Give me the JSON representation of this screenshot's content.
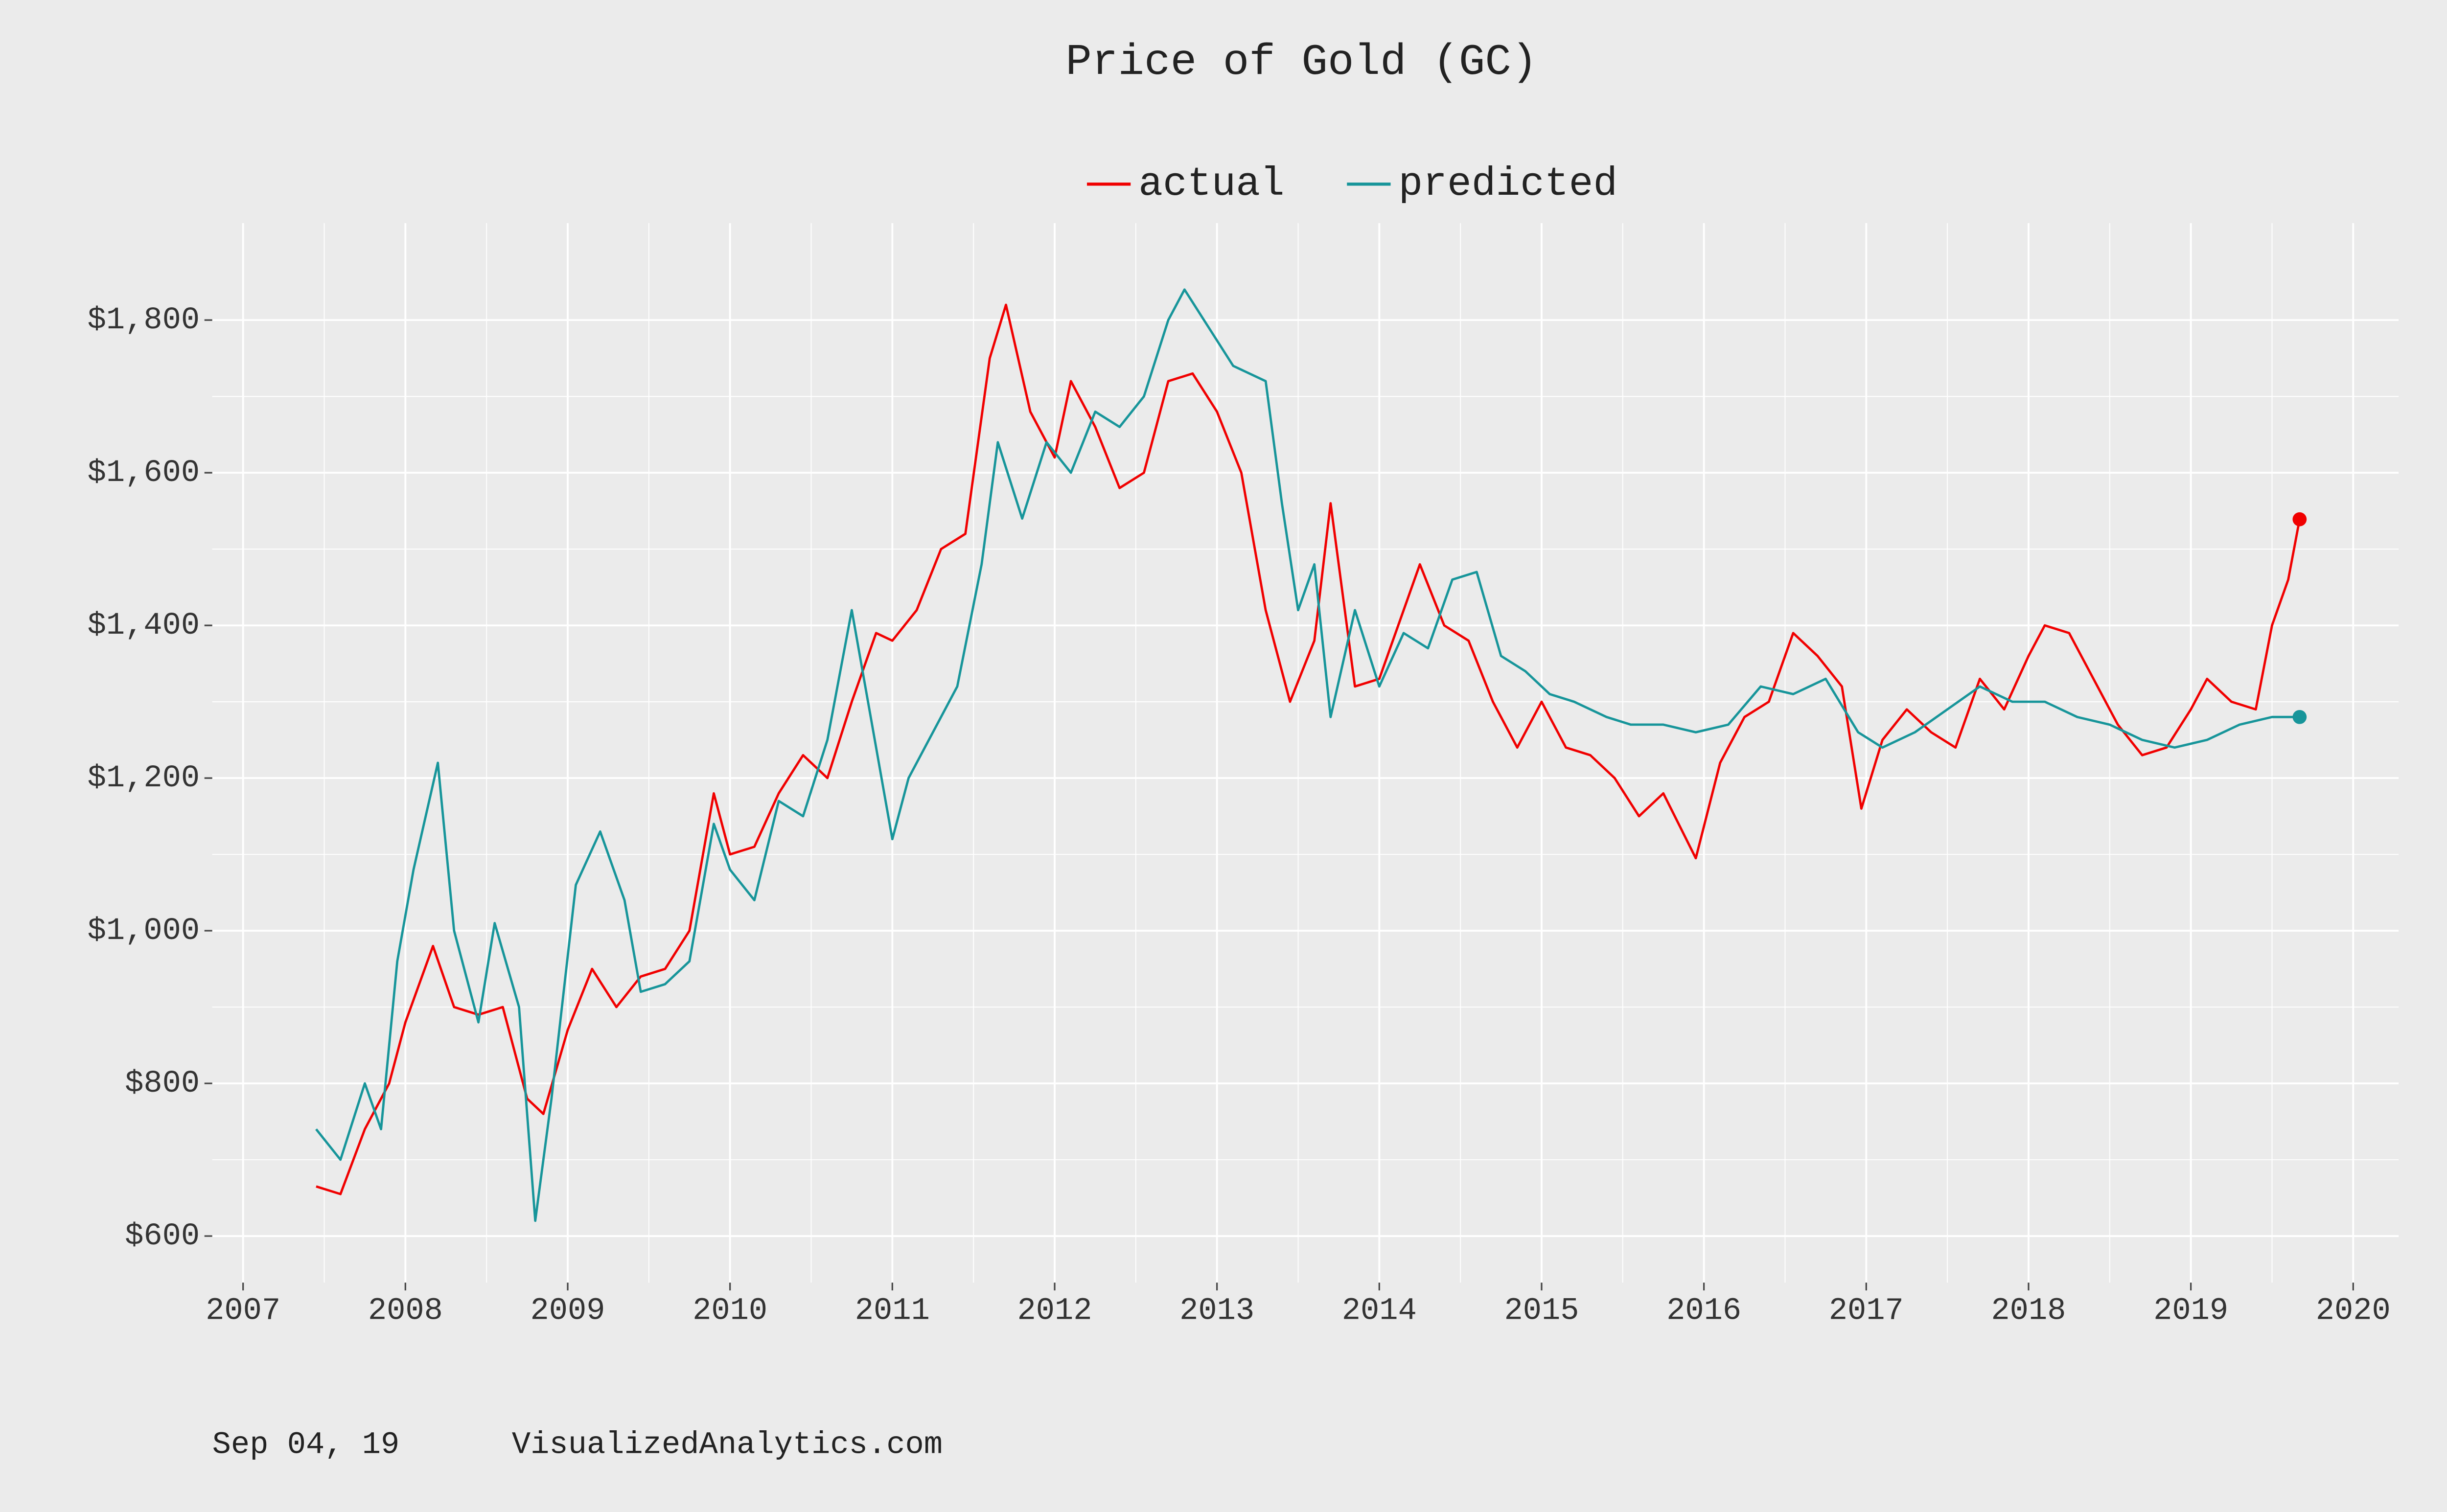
{
  "chart_data": {
    "type": "line",
    "title": "Price of Gold (GC)",
    "footer": [
      "Sep 04, 19",
      "VisualizedAnalytics.com"
    ],
    "legend": "top",
    "grid": true,
    "xlim": [
      2006.81,
      2020.28
    ],
    "xticks": [
      2007,
      2008,
      2009,
      2010,
      2011,
      2012,
      2013,
      2014,
      2015,
      2016,
      2017,
      2018,
      2019,
      2020
    ],
    "ylim": [
      539,
      1927
    ],
    "yticks": [
      {
        "value": 600,
        "label": "$600"
      },
      {
        "value": 800,
        "label": "$800"
      },
      {
        "value": 1000,
        "label": "$1,000"
      },
      {
        "value": 1200,
        "label": "$1,200"
      },
      {
        "value": 1400,
        "label": "$1,400"
      },
      {
        "value": 1600,
        "label": "$1,600"
      },
      {
        "value": 1800,
        "label": "$1,800"
      }
    ],
    "series": [
      {
        "name": "actual",
        "color": "#f00000",
        "x": [
          2007.45,
          2007.6,
          2007.75,
          2007.9,
          2008.0,
          2008.17,
          2008.3,
          2008.45,
          2008.6,
          2008.75,
          2008.85,
          2009.0,
          2009.15,
          2009.3,
          2009.45,
          2009.6,
          2009.75,
          2009.9,
          2010.0,
          2010.15,
          2010.3,
          2010.45,
          2010.6,
          2010.75,
          2010.9,
          2011.0,
          2011.15,
          2011.3,
          2011.45,
          2011.6,
          2011.7,
          2011.85,
          2012.0,
          2012.1,
          2012.25,
          2012.4,
          2012.55,
          2012.7,
          2012.85,
          2013.0,
          2013.15,
          2013.3,
          2013.45,
          2013.6,
          2013.7,
          2013.85,
          2014.0,
          2014.15,
          2014.25,
          2014.4,
          2014.55,
          2014.7,
          2014.85,
          2015.0,
          2015.15,
          2015.3,
          2015.45,
          2015.6,
          2015.75,
          2015.95,
          2016.1,
          2016.25,
          2016.4,
          2016.55,
          2016.7,
          2016.85,
          2016.97,
          2017.1,
          2017.25,
          2017.4,
          2017.55,
          2017.7,
          2017.85,
          2018.0,
          2018.1,
          2018.25,
          2018.4,
          2018.55,
          2018.7,
          2018.85,
          2019.0,
          2019.1,
          2019.25,
          2019.4,
          2019.5,
          2019.6,
          2019.67
        ],
        "values": [
          665,
          655,
          740,
          800,
          880,
          980,
          900,
          890,
          900,
          780,
          760,
          870,
          950,
          900,
          940,
          950,
          1000,
          1180,
          1100,
          1110,
          1180,
          1230,
          1200,
          1300,
          1390,
          1380,
          1420,
          1500,
          1520,
          1750,
          1820,
          1680,
          1620,
          1720,
          1660,
          1580,
          1600,
          1720,
          1730,
          1680,
          1600,
          1420,
          1300,
          1380,
          1560,
          1320,
          1330,
          1420,
          1480,
          1400,
          1380,
          1300,
          1240,
          1300,
          1240,
          1230,
          1200,
          1150,
          1180,
          1095,
          1220,
          1280,
          1300,
          1390,
          1360,
          1320,
          1160,
          1250,
          1290,
          1260,
          1240,
          1330,
          1290,
          1360,
          1400,
          1390,
          1330,
          1270,
          1230,
          1240,
          1290,
          1330,
          1300,
          1290,
          1400,
          1460,
          1539
        ]
      },
      {
        "name": "predicted",
        "color": "#17959a",
        "x": [
          2007.45,
          2007.6,
          2007.75,
          2007.85,
          2007.95,
          2008.05,
          2008.2,
          2008.3,
          2008.45,
          2008.55,
          2008.7,
          2008.8,
          2008.9,
          2009.05,
          2009.2,
          2009.35,
          2009.45,
          2009.6,
          2009.75,
          2009.9,
          2010.0,
          2010.15,
          2010.3,
          2010.45,
          2010.6,
          2010.75,
          2010.85,
          2011.0,
          2011.1,
          2011.25,
          2011.4,
          2011.55,
          2011.65,
          2011.8,
          2011.95,
          2012.1,
          2012.25,
          2012.4,
          2012.55,
          2012.7,
          2012.8,
          2012.95,
          2013.1,
          2013.3,
          2013.4,
          2013.5,
          2013.6,
          2013.7,
          2013.85,
          2014.0,
          2014.15,
          2014.3,
          2014.45,
          2014.6,
          2014.75,
          2014.9,
          2015.05,
          2015.2,
          2015.4,
          2015.55,
          2015.75,
          2015.95,
          2016.15,
          2016.35,
          2016.55,
          2016.75,
          2016.95,
          2017.1,
          2017.3,
          2017.5,
          2017.7,
          2017.9,
          2018.1,
          2018.3,
          2018.5,
          2018.7,
          2018.9,
          2019.1,
          2019.3,
          2019.5,
          2019.67
        ],
        "values": [
          740,
          700,
          800,
          740,
          960,
          1080,
          1220,
          1000,
          880,
          1010,
          900,
          620,
          780,
          1060,
          1130,
          1040,
          920,
          930,
          960,
          1140,
          1080,
          1040,
          1170,
          1150,
          1250,
          1420,
          1300,
          1120,
          1200,
          1260,
          1320,
          1480,
          1640,
          1540,
          1640,
          1600,
          1680,
          1660,
          1700,
          1800,
          1840,
          1790,
          1740,
          1720,
          1560,
          1420,
          1480,
          1280,
          1420,
          1320,
          1390,
          1370,
          1460,
          1470,
          1360,
          1340,
          1310,
          1300,
          1280,
          1270,
          1270,
          1260,
          1270,
          1320,
          1310,
          1330,
          1260,
          1240,
          1260,
          1290,
          1320,
          1300,
          1300,
          1280,
          1270,
          1250,
          1240,
          1250,
          1270,
          1280,
          1280
        ]
      }
    ]
  }
}
